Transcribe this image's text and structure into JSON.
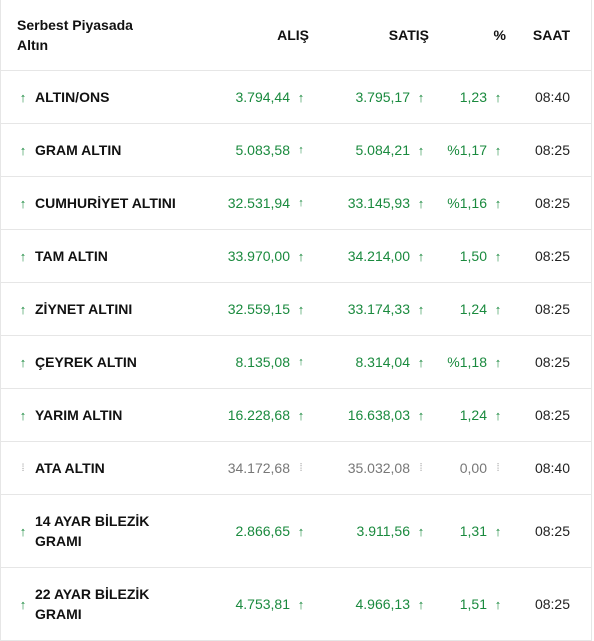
{
  "header": {
    "name_line1": "Serbest Piyasada",
    "name_line2": "Altın",
    "buy": "ALIŞ",
    "sell": "SATIŞ",
    "pct": "%",
    "time": "SAAT"
  },
  "colors": {
    "up": "#1a8a3e",
    "neutral": "#9a9a9a",
    "border": "#e6e6e6"
  },
  "rows": [
    {
      "name": "ALTIN/ONS",
      "buy": "3.794,44",
      "sell": "3.795,17",
      "pct": "1,23",
      "time": "08:40",
      "trend": "up"
    },
    {
      "name": "GRAM ALTIN",
      "buy": "5.083,58",
      "sell": "5.084,21",
      "pct": "%1,17",
      "time": "08:25",
      "trend": "up"
    },
    {
      "name": "CUMHURİYET ALTINI",
      "buy": "32.531,94",
      "sell": "33.145,93",
      "pct": "%1,16",
      "time": "08:25",
      "trend": "up"
    },
    {
      "name": "TAM ALTIN",
      "buy": "33.970,00",
      "sell": "34.214,00",
      "pct": "1,50",
      "time": "08:25",
      "trend": "up"
    },
    {
      "name": "ZİYNET ALTINI",
      "buy": "32.559,15",
      "sell": "33.174,33",
      "pct": "1,24",
      "time": "08:25",
      "trend": "up"
    },
    {
      "name": "ÇEYREK ALTIN",
      "buy": "8.135,08",
      "sell": "8.314,04",
      "pct": "%1,18",
      "time": "08:25",
      "trend": "up"
    },
    {
      "name": "YARIM ALTIN",
      "buy": "16.228,68",
      "sell": "16.638,03",
      "pct": "1,24",
      "time": "08:25",
      "trend": "up"
    },
    {
      "name": "ATA ALTIN",
      "buy": "34.172,68",
      "sell": "35.032,08",
      "pct": "0,00",
      "time": "08:40",
      "trend": "neutral"
    },
    {
      "name_line1": "14 AYAR BİLEZİK",
      "name_line2": "GRAMI",
      "buy": "2.866,65",
      "sell": "3.911,56",
      "pct": "1,31",
      "time": "08:25",
      "trend": "up"
    },
    {
      "name_line1": "22 AYAR BİLEZİK",
      "name_line2": "GRAMI",
      "buy": "4.753,81",
      "sell": "4.966,13",
      "pct": "1,51",
      "time": "08:25",
      "trend": "up"
    }
  ],
  "icons": {
    "up": "arrow-up-icon",
    "neutral": "dots-vertical-icon"
  }
}
